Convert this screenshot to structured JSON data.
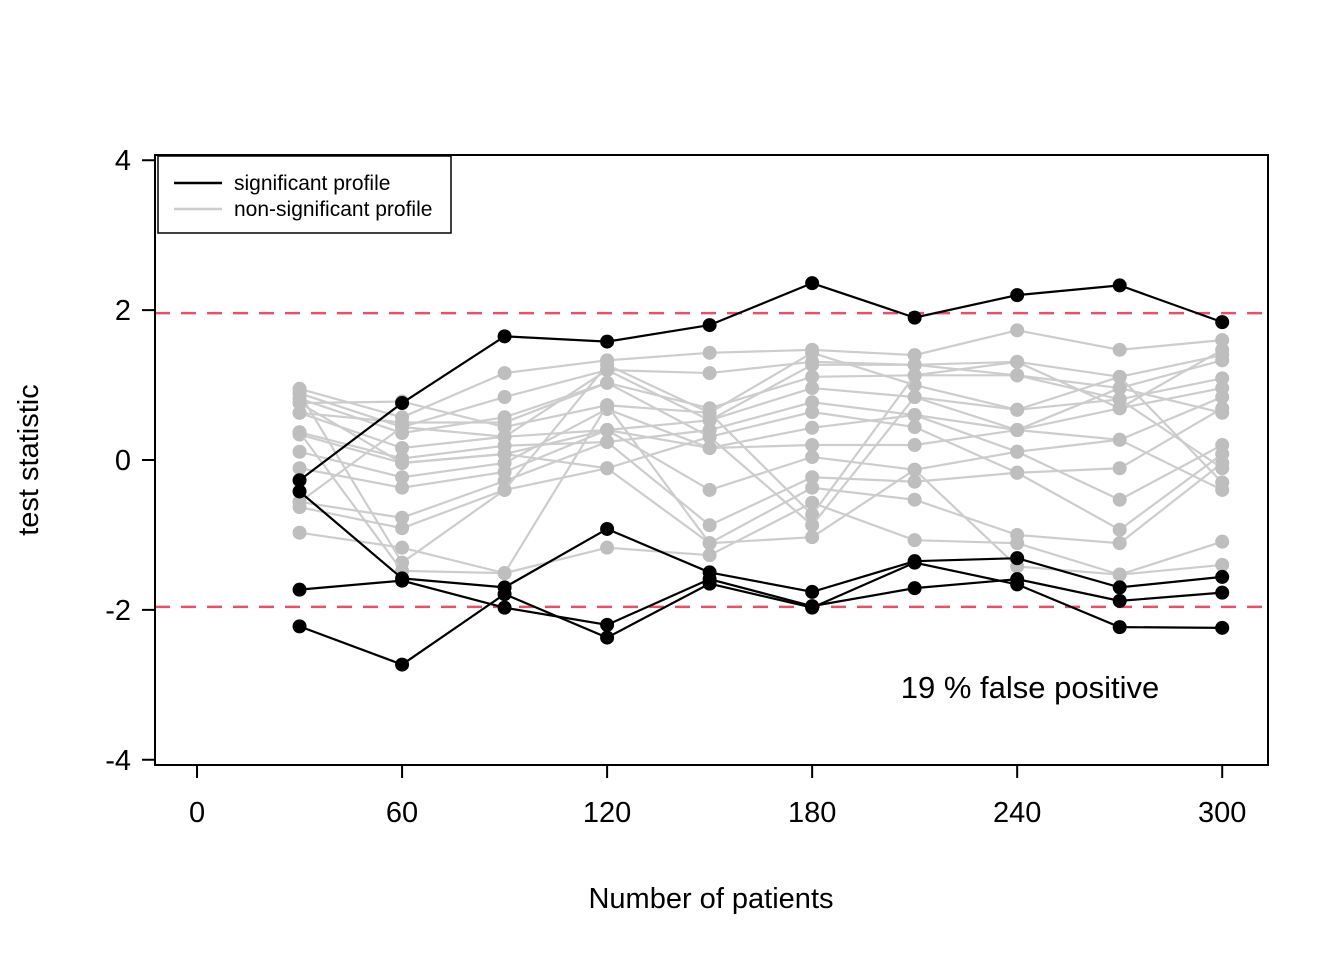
{
  "figure": {
    "background": "#ffffff",
    "annotation": {
      "text": "19 % false positive",
      "color": "#DF536B"
    },
    "legend": {
      "position": "top-left",
      "items": [
        {
          "label": "significant profile",
          "color": "#000000"
        },
        {
          "label": "non-significant profile",
          "color": "#CDCDCD"
        }
      ]
    },
    "colors": {
      "significant_line": "#000000",
      "significant_point": "#000000",
      "nonsignificant_line": "#CDCDCD",
      "nonsignificant_point": "#BEBEBE",
      "threshold": "#DF536B",
      "axis": "#000000"
    }
  },
  "chart_data": {
    "type": "line",
    "title": "",
    "xlabel": "Number of patients",
    "ylabel": "test statistic",
    "x": [
      30,
      60,
      90,
      120,
      150,
      180,
      210,
      240,
      270,
      300
    ],
    "xticks": [
      0,
      60,
      120,
      180,
      240,
      300
    ],
    "yticks": [
      -4,
      -2,
      0,
      2,
      4
    ],
    "xlim": [
      -12.3,
      313.4
    ],
    "ylim": [
      -4.07,
      4.07
    ],
    "grid": false,
    "threshold_lines": {
      "values": [
        1.96,
        -1.96
      ],
      "style": "dashed",
      "color": "#DF536B"
    },
    "series": [
      {
        "name": "s1",
        "group": "significant",
        "values": [
          -0.27,
          0.76,
          1.65,
          1.58,
          1.8,
          2.36,
          1.9,
          2.2,
          2.33,
          1.84
        ]
      },
      {
        "name": "s2",
        "group": "significant",
        "values": [
          -0.42,
          -1.58,
          -1.7,
          -0.92,
          -1.5,
          -1.76,
          -1.35,
          -1.31,
          -1.7,
          -1.56
        ]
      },
      {
        "name": "s3",
        "group": "significant",
        "values": [
          -1.73,
          -1.61,
          -1.97,
          -2.2,
          -1.59,
          -1.95,
          -1.71,
          -1.59,
          -1.88,
          -1.77
        ]
      },
      {
        "name": "s4",
        "group": "significant",
        "values": [
          -2.22,
          -2.73,
          -1.79,
          -2.37,
          -1.65,
          -1.97,
          -1.37,
          -1.66,
          -2.23,
          -2.24
        ]
      },
      {
        "name": "g1",
        "group": "nonsignificant",
        "values": [
          0.95,
          0.57,
          1.16,
          1.33,
          1.43,
          1.47,
          1.4,
          1.73,
          1.47,
          1.6
        ]
      },
      {
        "name": "g2",
        "group": "nonsignificant",
        "values": [
          0.89,
          0.44,
          0.84,
          1.2,
          1.16,
          1.31,
          1.27,
          1.31,
          1.11,
          1.4
        ]
      },
      {
        "name": "g3",
        "group": "nonsignificant",
        "values": [
          0.82,
          0.36,
          0.57,
          1.03,
          0.69,
          1.11,
          1.13,
          1.13,
          0.96,
          1.33
        ]
      },
      {
        "name": "g4",
        "group": "nonsignificant",
        "values": [
          0.76,
          0.78,
          0.44,
          0.73,
          0.63,
          1.43,
          1.0,
          0.67,
          0.81,
          1.09
        ]
      },
      {
        "name": "g5",
        "group": "nonsignificant",
        "values": [
          0.63,
          0.16,
          0.31,
          0.4,
          0.53,
          0.96,
          0.84,
          0.4,
          0.69,
          0.96
        ]
      },
      {
        "name": "g6",
        "group": "nonsignificant",
        "values": [
          0.37,
          0.02,
          0.19,
          0.24,
          0.4,
          0.77,
          0.6,
          0.11,
          0.27,
          0.84
        ]
      },
      {
        "name": "g7",
        "group": "nonsignificant",
        "values": [
          0.34,
          -0.04,
          0.08,
          -0.11,
          0.31,
          0.64,
          0.44,
          -0.17,
          -0.11,
          0.69
        ]
      },
      {
        "name": "g8",
        "group": "nonsignificant",
        "values": [
          0.11,
          -0.23,
          -0.04,
          0.68,
          0.16,
          0.2,
          0.2,
          0.4,
          0.96,
          0.63
        ]
      },
      {
        "name": "g9",
        "group": "nonsignificant",
        "values": [
          -0.11,
          -0.37,
          -0.16,
          0.4,
          -0.4,
          0.04,
          -0.13,
          0.11,
          -0.53,
          0.2
        ]
      },
      {
        "name": "g10",
        "group": "nonsignificant",
        "values": [
          -0.56,
          -0.77,
          -0.28,
          0.24,
          -0.87,
          -0.23,
          -0.29,
          -0.17,
          -0.93,
          0.08
        ]
      },
      {
        "name": "g11",
        "group": "nonsignificant",
        "values": [
          -0.63,
          -0.91,
          -0.4,
          -0.11,
          -1.11,
          -0.37,
          -0.53,
          -1.0,
          -1.11,
          -0.04
        ]
      },
      {
        "name": "g12",
        "group": "nonsignificant",
        "values": [
          -0.97,
          -1.17,
          -1.51,
          -1.17,
          -1.27,
          -0.57,
          -1.07,
          -1.11,
          -1.53,
          -1.09
        ]
      },
      {
        "name": "g13",
        "group": "nonsignificant",
        "values": [
          0.89,
          -1.37,
          -0.4,
          1.27,
          0.63,
          -0.73,
          1.13,
          1.31,
          0.69,
          1.47
        ]
      },
      {
        "name": "g14",
        "group": "nonsignificant",
        "values": [
          0.63,
          0.5,
          0.5,
          1.03,
          0.31,
          -0.87,
          0.84,
          0.67,
          1.11,
          -0.3
        ]
      },
      {
        "name": "g15",
        "group": "nonsignificant",
        "values": [
          0.37,
          -1.48,
          -1.51,
          0.73,
          -1.11,
          -1.03,
          -0.13,
          -1.42,
          -1.53,
          -1.4
        ]
      },
      {
        "name": "g16",
        "group": "nonsignificant",
        "values": [
          -0.56,
          0.44,
          0.31,
          1.2,
          0.53,
          1.27,
          1.27,
          1.13,
          0.81,
          -0.11
        ]
      },
      {
        "name": "g17",
        "group": "nonsignificant",
        "values": [
          0.76,
          -0.04,
          0.08,
          0.4,
          0.16,
          0.43,
          0.6,
          0.4,
          0.27,
          -0.4
        ]
      }
    ]
  }
}
